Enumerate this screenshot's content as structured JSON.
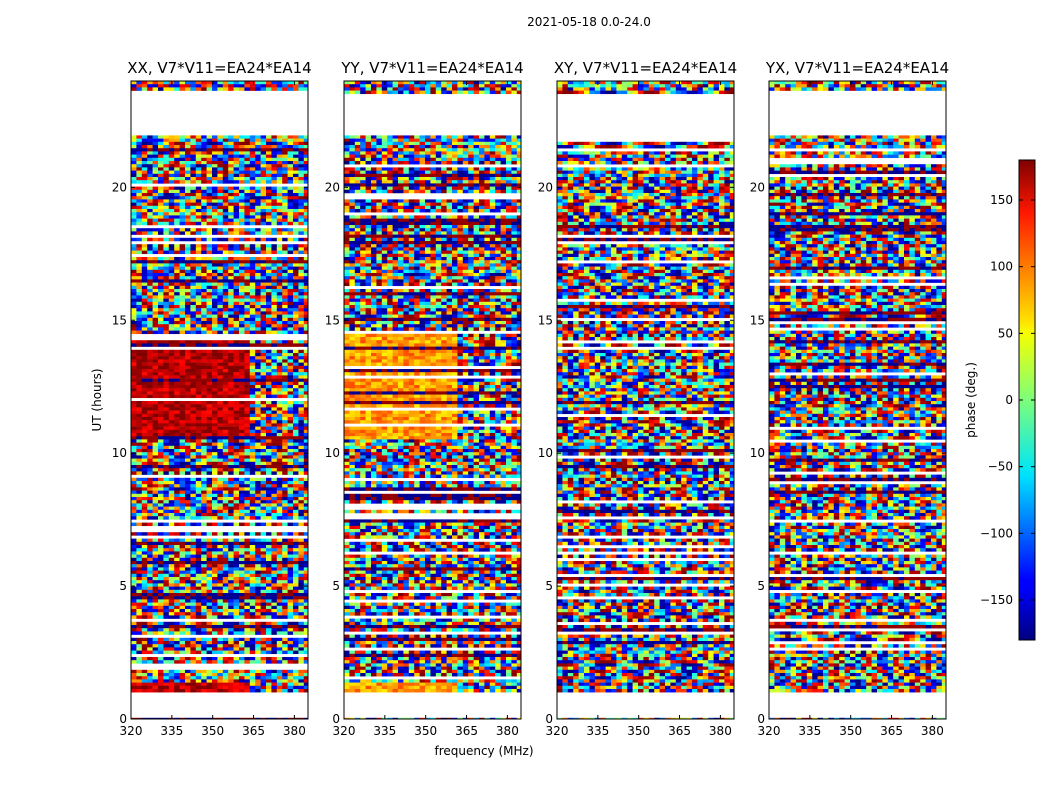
{
  "suptitle": "2021-05-18 0.0-24.0",
  "chart_data": {
    "type": "heatmap",
    "title": "2021-05-18 0.0-24.0",
    "xlabel": "frequency (MHz)",
    "ylabel": "UT (hours)",
    "xlim": [
      320,
      385
    ],
    "ylim": [
      0,
      24
    ],
    "xticks": [
      320,
      335,
      350,
      365,
      380
    ],
    "yticks": [
      0,
      5,
      10,
      15,
      20
    ],
    "colorbar": {
      "label": "phase (deg.)",
      "range": [
        -180,
        180
      ],
      "ticks": [
        150,
        100,
        50,
        0,
        -50,
        -100,
        -150
      ],
      "tick_labels": [
        "150",
        "100",
        "50",
        "0",
        "−50",
        "−100",
        "−150"
      ],
      "colormap": "jet"
    },
    "panels": [
      {
        "title": "XX, V7*V11=EA24*EA14",
        "coherent_phase_deg": 160,
        "coherent_freq_end_mhz": 363,
        "coherent_ut": [
          10.5,
          14.5
        ],
        "coherent_ut_low": [
          1.0,
          1.4
        ]
      },
      {
        "title": "YY, V7*V11=EA24*EA14",
        "coherent_phase_deg": 80,
        "coherent_freq_end_mhz": 361,
        "coherent_ut": [
          10.5,
          14.5
        ],
        "coherent_ut_low": [
          1.0,
          1.4
        ]
      },
      {
        "title": "XY, V7*V11=EA24*EA14",
        "coherent_phase_deg": null,
        "coherent_freq_end_mhz": null,
        "coherent_ut": null,
        "coherent_ut_low": null
      },
      {
        "title": "YX, V7*V11=EA24*EA14",
        "coherent_phase_deg": null,
        "coherent_freq_end_mhz": null,
        "coherent_ut": null,
        "coherent_ut_low": null
      }
    ],
    "flagged_ut_ranges": [
      [
        0,
        1.0
      ],
      [
        22.0,
        23.1
      ],
      [
        23.2,
        23.5
      ]
    ]
  }
}
